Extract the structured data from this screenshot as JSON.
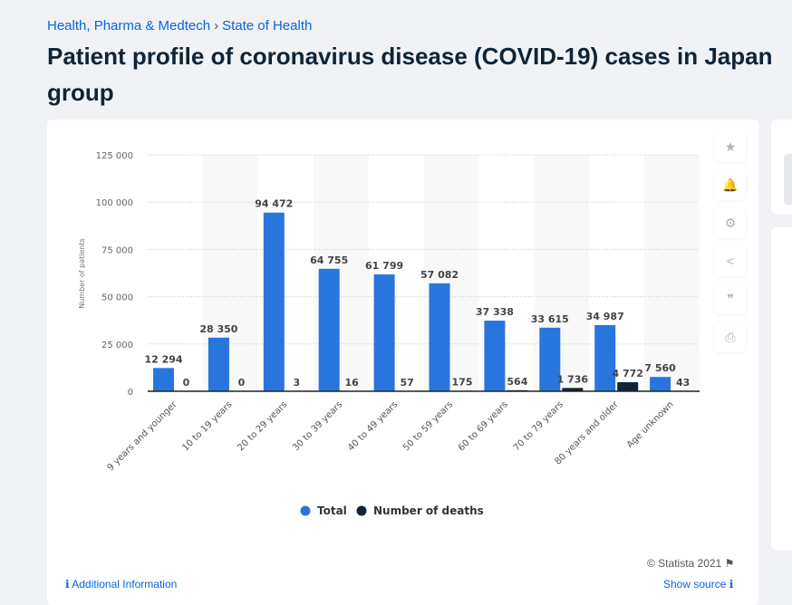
{
  "breadcrumb": {
    "items": [
      "Health, Pharma & Medtech",
      "State of Health"
    ],
    "separator": "›"
  },
  "title": "Patient profile of coronavirus disease (COVID-19) cases in Japan group",
  "title_lines": [
    "Patient profile of coronavirus disease (COVID-19) cases in Japan",
    "group"
  ],
  "tools": [
    {
      "icon": "star-icon",
      "glyph": "★"
    },
    {
      "icon": "bell-icon",
      "glyph": "🔔"
    },
    {
      "icon": "gear-icon",
      "glyph": "⚙"
    },
    {
      "icon": "share-icon",
      "glyph": "<"
    },
    {
      "icon": "quote-icon",
      "glyph": "❞"
    },
    {
      "icon": "print-icon",
      "glyph": "⎙"
    }
  ],
  "footer": {
    "copyright": "© Statista 2021",
    "additional_info": "Additional Information",
    "show_source": "Show source"
  },
  "colors": {
    "total": "#2876dd",
    "deaths": "#0f2437",
    "link": "#0666e0"
  },
  "chart_data": {
    "type": "bar",
    "ylabel": "Number of patients",
    "ylim": [
      0,
      125000
    ],
    "yticks": [
      "0",
      "25 000",
      "50 000",
      "75 000",
      "100 000",
      "125 000"
    ],
    "ytick_values": [
      0,
      25000,
      50000,
      75000,
      100000,
      125000
    ],
    "grid": true,
    "legend_position": "bottom",
    "categories": [
      "9 years and younger",
      "10 to 19 years",
      "20 to 29 years",
      "30 to 39 years",
      "40 to 49 years",
      "50 to 59 years",
      "60 to 69 years",
      "70 to 79 years",
      "80 years and older",
      "Age unknown"
    ],
    "series": [
      {
        "name": "Total",
        "color": "#2876dd",
        "values": [
          12294,
          28350,
          94472,
          64755,
          61799,
          57082,
          37338,
          33615,
          34987,
          7560
        ],
        "labels": [
          "12 294",
          "28 350",
          "94 472",
          "64 755",
          "61 799",
          "57 082",
          "37 338",
          "33 615",
          "34 987",
          "7 560"
        ]
      },
      {
        "name": "Number of deaths",
        "color": "#0f2437",
        "values": [
          0,
          0,
          3,
          16,
          57,
          175,
          564,
          1736,
          4772,
          43
        ],
        "labels": [
          "0",
          "0",
          "3",
          "16",
          "57",
          "175",
          "564",
          "1 736",
          "4 772",
          "43"
        ]
      }
    ]
  }
}
